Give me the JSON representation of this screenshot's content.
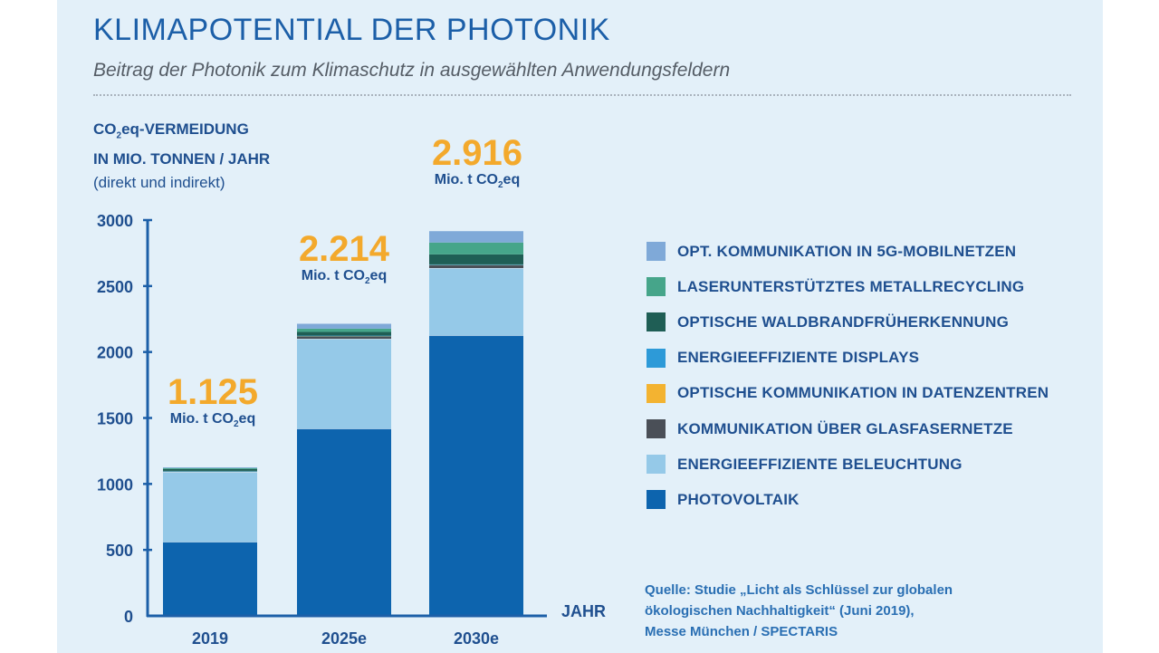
{
  "header": {
    "title": "KLIMAPOTENTIAL DER PHOTONIK",
    "subtitle": "Beitrag der Photonik zum Klimaschutz in ausgewählten Anwendungsfeldern"
  },
  "source": {
    "line1": "Quelle: Studie „Licht als Schlüssel zur globalen",
    "line2": "ökologischen Nachhaltigkeit“ (Juni 2019),",
    "line3": "Messe München / SPECTARIS"
  },
  "chart_data": {
    "type": "bar",
    "stacked": true,
    "title": "KLIMAPOTENTIAL DER PHOTONIK",
    "subtitle": "Beitrag der Photonik zum Klimaschutz in ausgewählten Anwendungsfeldern",
    "ylabel_lines": [
      "CO2eq-VERMEIDUNG",
      "IN MIO. TONNEN / JAHR",
      "(direkt und indirekt)"
    ],
    "xlabel": "JAHR",
    "ylim": [
      0,
      3000
    ],
    "yticks": [
      0,
      500,
      1000,
      1500,
      2000,
      2500,
      3000
    ],
    "grid": false,
    "legend_position": "right",
    "categories": [
      "2019",
      "2025e",
      "2030e"
    ],
    "totals": [
      {
        "value": "1.125",
        "unit": "Mio. t CO",
        "unit_sub": "2",
        "unit_tail": "eq"
      },
      {
        "value": "2.214",
        "unit": "Mio. t CO",
        "unit_sub": "2",
        "unit_tail": "eq"
      },
      {
        "value": "2.916",
        "unit": "Mio. t CO",
        "unit_sub": "2",
        "unit_tail": "eq"
      }
    ],
    "series": [
      {
        "name": "PHOTOVOLTAIK",
        "color": "#0d64ae",
        "values": [
          563,
          1421,
          2128
        ]
      },
      {
        "name": "ENERGIEEFFIZIENTE BELEUCHTUNG",
        "color": "#95c9e8",
        "values": [
          528,
          679,
          508
        ]
      },
      {
        "name": "KOMMUNIKATION ÜBER GLASFASERNETZE",
        "color": "#4a4f57",
        "values": [
          6,
          20,
          24
        ]
      },
      {
        "name": "OPTISCHE KOMMUNIKATION IN DATENZENTREN",
        "color": "#f3b331",
        "values": [
          1,
          2,
          2
        ]
      },
      {
        "name": "ENERGIEEFFIZIENTE DISPLAYS",
        "color": "#2d9ad8",
        "values": [
          1,
          2,
          2
        ]
      },
      {
        "name": "OPTISCHE WALDBRANDFRÜHERKENNUNG",
        "color": "#1f5e55",
        "values": [
          14,
          28,
          76
        ]
      },
      {
        "name": "LASERUNTERSTÜTZTES METALLRECYCLING",
        "color": "#46a58a",
        "values": [
          10,
          25,
          90
        ]
      },
      {
        "name": "OPT. KOMMUNIKATION IN 5G-MOBILNETZEN",
        "color": "#7fa9d8",
        "values": [
          2,
          37,
          86
        ]
      }
    ],
    "legend_order": [
      7,
      6,
      5,
      4,
      3,
      2,
      1,
      0
    ]
  }
}
